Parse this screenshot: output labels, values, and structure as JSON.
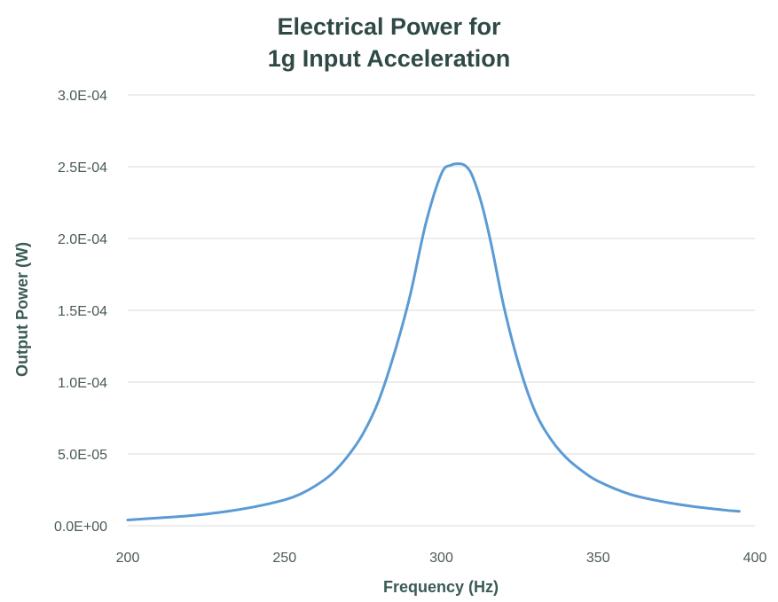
{
  "chart_data": {
    "type": "line",
    "title_line1": "Electrical Power for",
    "title_line2": "1g Input Acceleration",
    "xlabel": "Frequency (Hz)",
    "ylabel": "Output Power (W)",
    "xlim": [
      200,
      400
    ],
    "ylim": [
      0,
      0.0003
    ],
    "x_ticks": [
      200,
      250,
      300,
      350,
      400
    ],
    "x_tick_labels": [
      "200",
      "250",
      "300",
      "350",
      "400"
    ],
    "y_ticks": [
      0,
      5e-05,
      0.0001,
      0.00015,
      0.0002,
      0.00025,
      0.0003
    ],
    "y_tick_labels": [
      "0.0E+00",
      "5.0E-05",
      "1.0E-04",
      "1.5E-04",
      "2.0E-04",
      "2.5E-04",
      "3.0E-04"
    ],
    "grid": true,
    "line_color": "#5b9bd5",
    "series": [
      {
        "x": [
          200,
          210,
          220,
          230,
          240,
          250,
          255,
          260,
          265,
          270,
          275,
          280,
          285,
          290,
          295,
          300,
          303,
          306,
          308,
          310,
          313,
          316,
          320,
          325,
          330,
          335,
          340,
          345,
          350,
          360,
          370,
          380,
          390,
          395
        ],
        "values": [
          4e-06,
          5.5e-06,
          7e-06,
          9.5e-06,
          1.3e-05,
          1.8e-05,
          2.2e-05,
          2.8e-05,
          3.6e-05,
          4.8e-05,
          6.4e-05,
          8.7e-05,
          0.00012,
          0.00016,
          0.00021,
          0.000245,
          0.000251,
          0.000252,
          0.00025,
          0.000243,
          0.000223,
          0.000195,
          0.000152,
          0.00011,
          7.9e-05,
          6e-05,
          4.7e-05,
          3.8e-05,
          3.1e-05,
          2.2e-05,
          1.7e-05,
          1.35e-05,
          1.1e-05,
          1e-05
        ]
      }
    ]
  }
}
